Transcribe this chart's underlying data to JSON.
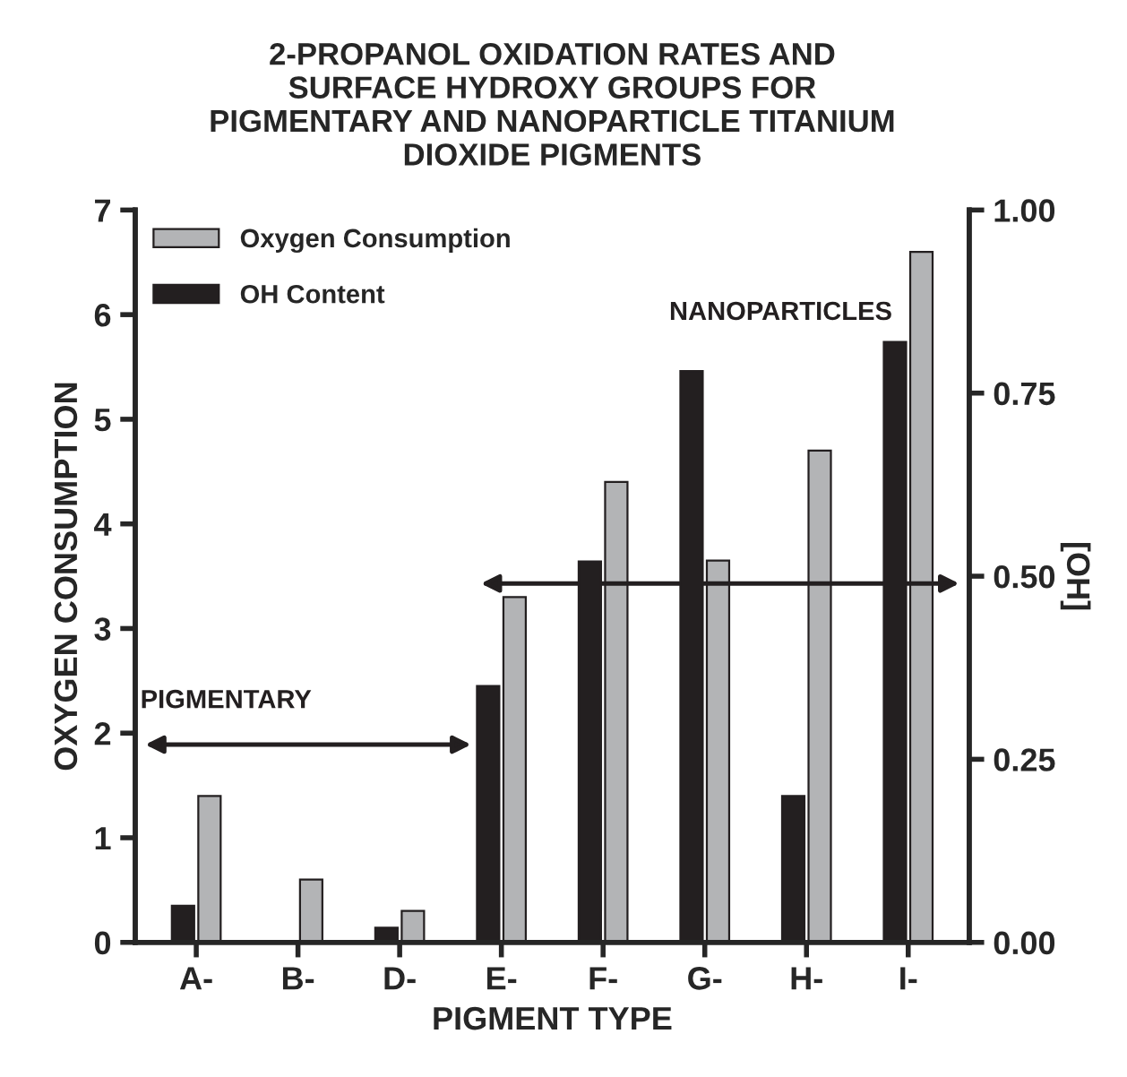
{
  "chart_data": {
    "type": "bar",
    "title": "2-PROPANOL OXIDATION RATES AND\nSURFACE HYDROXY GROUPS FOR\nPIGMENTARY AND NANOPARTICLE TITANIUM\nDIOXIDE PIGMENTS",
    "xlabel": "PIGMENT TYPE",
    "ylabel": "OXYGEN CONSUMPTION",
    "y2label": "[OH]",
    "categories": [
      "A-",
      "B-",
      "D-",
      "E-",
      "F-",
      "G-",
      "H-",
      "I-"
    ],
    "series": [
      {
        "name": "Oxygen Consumption",
        "color": "#b3b4b6",
        "values": [
          1.4,
          0.6,
          0.3,
          3.3,
          4.4,
          3.65,
          4.7,
          6.6
        ]
      },
      {
        "name": "OH Content",
        "color": "#231f20",
        "axis": "y2",
        "values": [
          0.05,
          null,
          0.02,
          0.35,
          0.52,
          0.78,
          0.2,
          0.82
        ]
      }
    ],
    "ylim": [
      0,
      7
    ],
    "yticks": [
      0,
      1,
      2,
      3,
      4,
      5,
      6,
      7
    ],
    "y2lim": [
      0,
      1
    ],
    "y2ticks": [
      {
        "value": 0,
        "label": "0.00"
      },
      {
        "value": 0.25,
        "label": "0.25"
      },
      {
        "value": 0.5,
        "label": "0.50"
      },
      {
        "value": 0.75,
        "label": "0.75"
      },
      {
        "value": 1,
        "label": "1.00"
      }
    ],
    "annotations": [
      "PIGMENTARY",
      "NANOPARTICLES"
    ],
    "legend": "top left",
    "grid": false
  }
}
